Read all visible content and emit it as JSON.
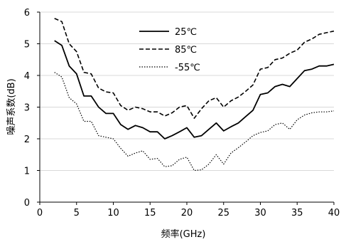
{
  "chart_data": {
    "type": "line",
    "xlabel": "频率(GHz)",
    "ylabel": "噪声系数(dB)",
    "xlim": [
      0,
      40
    ],
    "ylim": [
      0,
      6
    ],
    "xticks": [
      0,
      5,
      10,
      15,
      20,
      25,
      30,
      35,
      40
    ],
    "yticks": [
      0,
      1,
      2,
      3,
      4,
      5,
      6
    ],
    "grid": true,
    "legend_position": "top-center",
    "series": [
      {
        "name": "25℃",
        "style": "solid",
        "color": "#000000",
        "x": [
          2,
          3,
          4,
          5,
          6,
          7,
          8,
          9,
          10,
          11,
          12,
          13,
          14,
          15,
          16,
          17,
          18,
          19,
          20,
          21,
          22,
          23,
          24,
          25,
          26,
          27,
          28,
          29,
          30,
          31,
          32,
          33,
          34,
          35,
          36,
          37,
          38,
          39,
          40
        ],
        "y": [
          5.1,
          4.95,
          4.3,
          4.05,
          3.35,
          3.35,
          3.0,
          2.8,
          2.8,
          2.45,
          2.3,
          2.42,
          2.35,
          2.22,
          2.22,
          2.0,
          2.1,
          2.22,
          2.35,
          2.05,
          2.1,
          2.3,
          2.5,
          2.25,
          2.38,
          2.5,
          2.7,
          2.9,
          3.4,
          3.45,
          3.65,
          3.72,
          3.65,
          3.9,
          4.15,
          4.2,
          4.3,
          4.3,
          4.35
        ]
      },
      {
        "name": "85℃",
        "style": "dashed",
        "color": "#000000",
        "x": [
          2,
          3,
          4,
          5,
          6,
          7,
          8,
          9,
          10,
          11,
          12,
          13,
          14,
          15,
          16,
          17,
          18,
          19,
          20,
          21,
          22,
          23,
          24,
          25,
          26,
          27,
          28,
          29,
          30,
          31,
          32,
          33,
          34,
          35,
          36,
          37,
          38,
          39,
          40
        ],
        "y": [
          5.8,
          5.7,
          5.0,
          4.75,
          4.1,
          4.05,
          3.6,
          3.48,
          3.45,
          3.05,
          2.9,
          3.0,
          2.95,
          2.85,
          2.85,
          2.72,
          2.82,
          3.0,
          3.05,
          2.65,
          2.95,
          3.2,
          3.3,
          3.0,
          3.2,
          3.32,
          3.5,
          3.7,
          4.2,
          4.25,
          4.5,
          4.55,
          4.7,
          4.8,
          5.05,
          5.15,
          5.3,
          5.35,
          5.4
        ]
      },
      {
        "name": "-55℃",
        "style": "dotted",
        "color": "#000000",
        "x": [
          2,
          3,
          4,
          5,
          6,
          7,
          8,
          9,
          10,
          11,
          12,
          13,
          14,
          15,
          16,
          17,
          18,
          19,
          20,
          21,
          22,
          23,
          24,
          25,
          26,
          27,
          28,
          29,
          30,
          31,
          32,
          33,
          34,
          35,
          36,
          37,
          38,
          39,
          40
        ],
        "y": [
          4.1,
          3.95,
          3.3,
          3.1,
          2.55,
          2.55,
          2.1,
          2.05,
          2.0,
          1.7,
          1.45,
          1.55,
          1.62,
          1.35,
          1.38,
          1.12,
          1.15,
          1.35,
          1.42,
          1.0,
          1.02,
          1.2,
          1.5,
          1.2,
          1.55,
          1.72,
          1.9,
          2.1,
          2.2,
          2.25,
          2.45,
          2.5,
          2.3,
          2.6,
          2.75,
          2.82,
          2.85,
          2.85,
          2.88
        ]
      }
    ]
  }
}
